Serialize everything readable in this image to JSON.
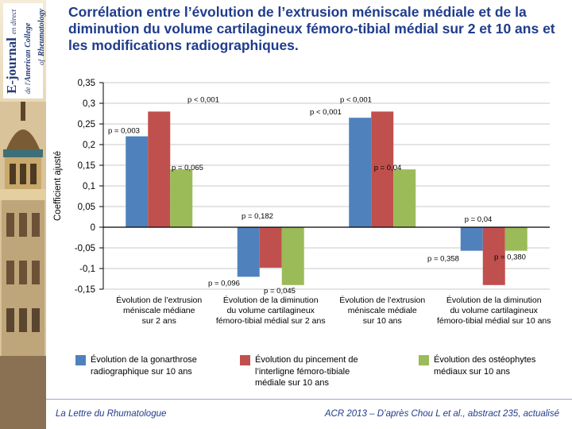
{
  "sidebar": {
    "journal_name": "E-journal",
    "journal_suffix": "en direct",
    "journal_of": "de l'",
    "journal_org": "American College",
    "journal_of2": "of",
    "journal_org2": "Rheumatology"
  },
  "title": "Corrélation entre l’évolution de l’extrusion méniscale médiale et de la diminution du volume cartilagineux fémoro-tibial médial sur 2 et 10 ans et les modifications radiographiques.",
  "chart_data": {
    "type": "bar",
    "ylabel": "Coefficient ajusté",
    "ylim": [
      -0.15,
      0.35
    ],
    "yticks": [
      0.35,
      0.3,
      0.25,
      0.2,
      0.15,
      0.1,
      0.05,
      0,
      -0.05,
      -0.1,
      -0.15
    ],
    "ytick_labels": [
      "0,35",
      "0,3",
      "0,25",
      "0,2",
      "0,15",
      "0,1",
      "0,05",
      "0",
      "-0,05",
      "-0,1",
      "-0,15"
    ],
    "categories": [
      [
        "Évolution de l’extrusion",
        "méniscale médiane",
        "sur 2 ans"
      ],
      [
        "Évolution de la diminution",
        "du volume cartilagineux",
        "fémoro-tibial médial sur 2 ans"
      ],
      [
        "Évolution de l’extrusion",
        "méniscale médiale",
        "sur 10 ans"
      ],
      [
        "Évolution de la diminution",
        "du volume cartilagineux",
        "fémoro-tibial médial sur 10 ans"
      ]
    ],
    "series": [
      {
        "name": "Évolution de la gonarthrose radiographique sur 10 ans",
        "color": "#4f81bd",
        "values": [
          0.22,
          -0.12,
          0.265,
          -0.057
        ],
        "labels": [
          "p = 0,003",
          "p = 0,096",
          "p < 0,001",
          "p = 0,358"
        ]
      },
      {
        "name": "Évolution du pincement de l’interligne fémoro-tibiale médiale sur 10 ans",
        "color": "#c0504d",
        "values": [
          0.28,
          -0.098,
          0.28,
          -0.14
        ],
        "labels": [
          "p < 0,001",
          "p = 0,182",
          "p < 0,001",
          "p = 0,04"
        ]
      },
      {
        "name": "Évolution des ostéophytes médiaux sur 10 ans",
        "color": "#9bbb59",
        "values": [
          0.14,
          -0.14,
          0.14,
          -0.057
        ],
        "labels": [
          "p = 0,065",
          "p = 0,045",
          "p = 0,04",
          "p = 0,380"
        ]
      }
    ],
    "grid": true,
    "legend": "bottom"
  },
  "legend": {
    "items": [
      {
        "lines": [
          "Évolution de la gonarthrose",
          "radiographique sur 10 ans"
        ],
        "color": "#4f81bd"
      },
      {
        "lines": [
          "Évolution du pincement de",
          "l’interligne fémoro-tibiale",
          "médiale sur 10 ans"
        ],
        "color": "#c0504d"
      },
      {
        "lines": [
          "Évolution des ostéophytes",
          "médiaux sur 10 ans"
        ],
        "color": "#9bbb59"
      }
    ]
  },
  "footer": {
    "left": "La Lettre du Rhumatologue",
    "right": "ACR 2013 – D’après Chou L et al., abstract 235, actualisé"
  }
}
